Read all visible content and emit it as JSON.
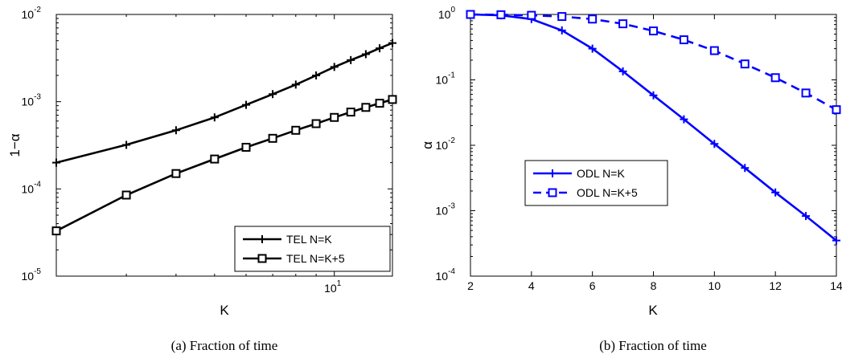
{
  "chart_data": [
    {
      "type": "line",
      "xscale": "log",
      "yscale": "log",
      "xlim": [
        2,
        14
      ],
      "ylim": [
        1e-05,
        0.01
      ],
      "xticks": [
        {
          "value": 10,
          "base": "10",
          "exp": "1"
        }
      ],
      "yticks": [
        {
          "value": 1e-05,
          "base": "10",
          "exp": "-5"
        },
        {
          "value": 0.0001,
          "base": "10",
          "exp": "-4"
        },
        {
          "value": 0.001,
          "base": "10",
          "exp": "-3"
        },
        {
          "value": 0.01,
          "base": "10",
          "exp": "-2"
        }
      ],
      "xlabel": "K",
      "ylabel": "1−α",
      "caption": "(a) Fraction of time",
      "grid": false,
      "legend_position": "bottom-right",
      "color": "#000000",
      "x": [
        2,
        3,
        4,
        5,
        6,
        7,
        8,
        9,
        10,
        11,
        12,
        13,
        14
      ],
      "series": [
        {
          "name": "TEL N=K",
          "marker": "plus",
          "linestyle": "solid",
          "values": [
            0.0002,
            0.00032,
            0.00047,
            0.00066,
            0.00092,
            0.00122,
            0.00157,
            0.002,
            0.0025,
            0.003,
            0.0035,
            0.0041,
            0.0047
          ]
        },
        {
          "name": "TEL N=K+5",
          "marker": "square",
          "linestyle": "solid",
          "values": [
            3.3e-05,
            8.5e-05,
            0.00015,
            0.00022,
            0.0003,
            0.00038,
            0.00047,
            0.00056,
            0.00066,
            0.00076,
            0.00086,
            0.00096,
            0.00106
          ]
        }
      ]
    },
    {
      "type": "line",
      "xscale": "linear",
      "yscale": "log",
      "xlim": [
        2,
        14
      ],
      "ylim": [
        0.0001,
        1
      ],
      "xticks": [
        {
          "value": 2,
          "label": "2"
        },
        {
          "value": 4,
          "label": "4"
        },
        {
          "value": 6,
          "label": "6"
        },
        {
          "value": 8,
          "label": "8"
        },
        {
          "value": 10,
          "label": "10"
        },
        {
          "value": 12,
          "label": "12"
        },
        {
          "value": 14,
          "label": "14"
        }
      ],
      "yticks": [
        {
          "value": 0.0001,
          "base": "10",
          "exp": "-4"
        },
        {
          "value": 0.001,
          "base": "10",
          "exp": "-3"
        },
        {
          "value": 0.01,
          "base": "10",
          "exp": "-2"
        },
        {
          "value": 0.1,
          "base": "10",
          "exp": "-1"
        },
        {
          "value": 1,
          "base": "10",
          "exp": "0"
        }
      ],
      "xlabel": "K",
      "ylabel": "α",
      "caption": "(b) Fraction of time",
      "grid": false,
      "legend_position": "top-left",
      "color": "#0000ff",
      "x": [
        2,
        3,
        4,
        5,
        6,
        7,
        8,
        9,
        10,
        11,
        12,
        13,
        14
      ],
      "series": [
        {
          "name": "ODL N=K",
          "marker": "plus",
          "linestyle": "solid",
          "values": [
            1.0,
            0.97,
            0.85,
            0.57,
            0.3,
            0.135,
            0.058,
            0.025,
            0.0105,
            0.0045,
            0.0019,
            0.00083,
            0.00035
          ]
        },
        {
          "name": "ODL N=K+5",
          "marker": "square",
          "linestyle": "dashed",
          "values": [
            1.0,
            0.99,
            0.97,
            0.93,
            0.85,
            0.72,
            0.56,
            0.41,
            0.28,
            0.175,
            0.108,
            0.063,
            0.035
          ]
        }
      ]
    }
  ]
}
